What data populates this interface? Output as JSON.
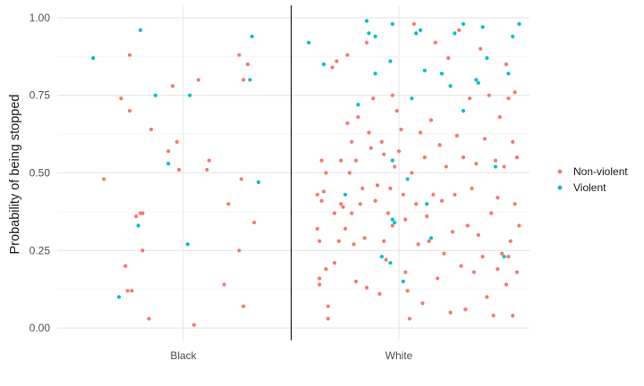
{
  "chart_data": {
    "type": "scatter",
    "title": "",
    "xlabel": "",
    "ylabel": "Probability of being stopped",
    "categories": [
      "Black",
      "White"
    ],
    "ylim": [
      -0.04,
      1.04
    ],
    "yticks": [
      0.0,
      0.25,
      0.5,
      0.75,
      1.0
    ],
    "ytick_labels": [
      "0.00",
      "0.25",
      "0.50",
      "0.75",
      "1.00"
    ],
    "grid": true,
    "divider_between_categories": true,
    "legend_position": "right",
    "series": [
      {
        "name": "Non-violent",
        "color": "#F8766D",
        "points": [
          [
            "Black",
            -0.37,
            0.48
          ],
          [
            "Black",
            -0.29,
            0.74
          ],
          [
            "Black",
            -0.27,
            0.2
          ],
          [
            "Black",
            -0.25,
            0.88
          ],
          [
            "Black",
            -0.25,
            0.7
          ],
          [
            "Black",
            -0.26,
            0.12
          ],
          [
            "Black",
            -0.24,
            0.12
          ],
          [
            "Black",
            -0.22,
            0.36
          ],
          [
            "Black",
            -0.2,
            0.37
          ],
          [
            "Black",
            -0.19,
            0.37
          ],
          [
            "Black",
            -0.19,
            0.25
          ],
          [
            "Black",
            -0.16,
            0.03
          ],
          [
            "Black",
            -0.15,
            0.64
          ],
          [
            "Black",
            -0.07,
            0.57
          ],
          [
            "Black",
            -0.05,
            0.78
          ],
          [
            "Black",
            -0.03,
            0.6
          ],
          [
            "Black",
            -0.02,
            0.51
          ],
          [
            "Black",
            0.05,
            0.01
          ],
          [
            "Black",
            0.07,
            0.8
          ],
          [
            "Black",
            0.11,
            0.51
          ],
          [
            "Black",
            0.12,
            0.54
          ],
          [
            "Black",
            0.19,
            0.14
          ],
          [
            "Black",
            0.21,
            0.4
          ],
          [
            "Black",
            0.26,
            0.88
          ],
          [
            "Black",
            0.26,
            0.25
          ],
          [
            "Black",
            0.27,
            0.48
          ],
          [
            "Black",
            0.28,
            0.07
          ],
          [
            "Black",
            0.28,
            0.8
          ],
          [
            "Black",
            0.3,
            0.85
          ],
          [
            "Black",
            0.33,
            0.34
          ],
          [
            "White",
            -0.38,
            0.43
          ],
          [
            "White",
            -0.38,
            0.32
          ],
          [
            "White",
            -0.37,
            0.28
          ],
          [
            "White",
            -0.37,
            0.16
          ],
          [
            "White",
            -0.37,
            0.14
          ],
          [
            "White",
            -0.36,
            0.41
          ],
          [
            "White",
            -0.36,
            0.54
          ],
          [
            "White",
            -0.35,
            0.44
          ],
          [
            "White",
            -0.34,
            0.5
          ],
          [
            "White",
            -0.34,
            0.19
          ],
          [
            "White",
            -0.33,
            0.07
          ],
          [
            "White",
            -0.33,
            0.03
          ],
          [
            "White",
            -0.31,
            0.84
          ],
          [
            "White",
            -0.3,
            0.37
          ],
          [
            "White",
            -0.3,
            0.21
          ],
          [
            "White",
            -0.29,
            0.86
          ],
          [
            "White",
            -0.28,
            0.28
          ],
          [
            "White",
            -0.27,
            0.54
          ],
          [
            "White",
            -0.27,
            0.4
          ],
          [
            "White",
            -0.26,
            0.39
          ],
          [
            "White",
            -0.25,
            0.32
          ],
          [
            "White",
            -0.24,
            0.88
          ],
          [
            "White",
            -0.24,
            0.66
          ],
          [
            "White",
            -0.23,
            0.5
          ],
          [
            "White",
            -0.22,
            0.6
          ],
          [
            "White",
            -0.22,
            0.37
          ],
          [
            "White",
            -0.21,
            0.27
          ],
          [
            "White",
            -0.2,
            0.15
          ],
          [
            "White",
            -0.2,
            0.54
          ],
          [
            "White",
            -0.19,
            0.68
          ],
          [
            "White",
            -0.18,
            0.4
          ],
          [
            "White",
            -0.17,
            0.45
          ],
          [
            "White",
            -0.16,
            0.29
          ],
          [
            "White",
            -0.15,
            0.92
          ],
          [
            "White",
            -0.15,
            0.13
          ],
          [
            "White",
            -0.14,
            0.63
          ],
          [
            "White",
            -0.13,
            0.58
          ],
          [
            "White",
            -0.12,
            0.74
          ],
          [
            "White",
            -0.11,
            0.41
          ],
          [
            "White",
            -0.1,
            0.46
          ],
          [
            "White",
            -0.09,
            0.11
          ],
          [
            "White",
            -0.08,
            0.6
          ],
          [
            "White",
            -0.07,
            0.28
          ],
          [
            "White",
            -0.07,
            0.56
          ],
          [
            "White",
            -0.06,
            0.22
          ],
          [
            "White",
            -0.05,
            0.37
          ],
          [
            "White",
            -0.04,
            0.45
          ],
          [
            "White",
            -0.03,
            0.75
          ],
          [
            "White",
            -0.03,
            0.33
          ],
          [
            "White",
            -0.02,
            0.52
          ],
          [
            "White",
            -0.01,
            0.7
          ],
          [
            "White",
            0.0,
            0.57
          ],
          [
            "White",
            0.01,
            0.64
          ],
          [
            "White",
            0.02,
            0.43
          ],
          [
            "White",
            0.03,
            0.35
          ],
          [
            "White",
            0.03,
            0.18
          ],
          [
            "White",
            0.04,
            0.12
          ],
          [
            "White",
            0.05,
            0.03
          ],
          [
            "White",
            0.06,
            0.5
          ],
          [
            "White",
            0.07,
            0.98
          ],
          [
            "White",
            0.08,
            0.4
          ],
          [
            "White",
            0.09,
            0.27
          ],
          [
            "White",
            0.1,
            0.63
          ],
          [
            "White",
            0.11,
            0.08
          ],
          [
            "White",
            0.12,
            0.55
          ],
          [
            "White",
            0.13,
            0.36
          ],
          [
            "White",
            0.14,
            0.28
          ],
          [
            "White",
            0.15,
            0.67
          ],
          [
            "White",
            0.16,
            0.43
          ],
          [
            "White",
            0.17,
            0.92
          ],
          [
            "White",
            0.18,
            0.16
          ],
          [
            "White",
            0.19,
            0.59
          ],
          [
            "White",
            0.2,
            0.41
          ],
          [
            "White",
            0.21,
            0.24
          ],
          [
            "White",
            0.22,
            0.52
          ],
          [
            "White",
            0.23,
            0.87
          ],
          [
            "White",
            0.24,
            0.05
          ],
          [
            "White",
            0.25,
            0.31
          ],
          [
            "White",
            0.26,
            0.43
          ],
          [
            "White",
            0.27,
            0.62
          ],
          [
            "White",
            0.28,
            0.96
          ],
          [
            "White",
            0.29,
            0.2
          ],
          [
            "White",
            0.3,
            0.55
          ],
          [
            "White",
            0.31,
            0.06
          ],
          [
            "White",
            0.32,
            0.33
          ],
          [
            "White",
            0.33,
            0.74
          ],
          [
            "White",
            0.34,
            0.45
          ],
          [
            "White",
            0.35,
            0.18
          ],
          [
            "White",
            0.36,
            0.53
          ],
          [
            "White",
            0.37,
            0.3
          ],
          [
            "White",
            0.38,
            0.9
          ],
          [
            "White",
            0.39,
            0.23
          ],
          [
            "White",
            0.4,
            0.61
          ],
          [
            "White",
            0.41,
            0.1
          ],
          [
            "White",
            0.42,
            0.75
          ],
          [
            "White",
            0.43,
            0.37
          ],
          [
            "White",
            0.44,
            0.04
          ],
          [
            "White",
            0.45,
            0.54
          ],
          [
            "White",
            0.46,
            0.19
          ],
          [
            "White",
            0.46,
            0.42
          ],
          [
            "White",
            0.47,
            0.68
          ],
          [
            "White",
            0.48,
            0.24
          ],
          [
            "White",
            0.49,
            0.52
          ],
          [
            "White",
            0.5,
            0.85
          ],
          [
            "White",
            0.5,
            0.14
          ],
          [
            "White",
            0.51,
            0.74
          ],
          [
            "White",
            0.51,
            0.23
          ],
          [
            "White",
            0.52,
            0.28
          ],
          [
            "White",
            0.53,
            0.6
          ],
          [
            "White",
            0.53,
            0.04
          ],
          [
            "White",
            0.54,
            0.4
          ],
          [
            "White",
            0.54,
            0.76
          ],
          [
            "White",
            0.55,
            0.18
          ],
          [
            "White",
            0.55,
            0.55
          ],
          [
            "White",
            0.56,
            0.33
          ]
        ]
      },
      {
        "name": "Violent",
        "color": "#00BFC4",
        "points": [
          [
            "Black",
            -0.42,
            0.87
          ],
          [
            "Black",
            -0.3,
            0.1
          ],
          [
            "Black",
            -0.21,
            0.33
          ],
          [
            "Black",
            -0.2,
            0.96
          ],
          [
            "Black",
            -0.13,
            0.75
          ],
          [
            "Black",
            -0.07,
            0.53
          ],
          [
            "Black",
            0.02,
            0.27
          ],
          [
            "Black",
            0.03,
            0.75
          ],
          [
            "Black",
            0.31,
            0.8
          ],
          [
            "Black",
            0.32,
            0.94
          ],
          [
            "Black",
            0.35,
            0.47
          ],
          [
            "White",
            -0.42,
            0.92
          ],
          [
            "White",
            -0.35,
            0.85
          ],
          [
            "White",
            -0.25,
            0.43
          ],
          [
            "White",
            -0.19,
            0.72
          ],
          [
            "White",
            -0.15,
            0.99
          ],
          [
            "White",
            -0.14,
            0.95
          ],
          [
            "White",
            -0.11,
            0.94
          ],
          [
            "White",
            -0.11,
            0.82
          ],
          [
            "White",
            -0.08,
            0.23
          ],
          [
            "White",
            -0.04,
            0.21
          ],
          [
            "White",
            -0.04,
            0.86
          ],
          [
            "White",
            -0.03,
            0.98
          ],
          [
            "White",
            -0.03,
            0.54
          ],
          [
            "White",
            -0.03,
            0.35
          ],
          [
            "White",
            -0.02,
            0.34
          ],
          [
            "White",
            0.02,
            0.15
          ],
          [
            "White",
            0.04,
            0.48
          ],
          [
            "White",
            0.06,
            0.74
          ],
          [
            "White",
            0.08,
            0.95
          ],
          [
            "White",
            0.1,
            0.96
          ],
          [
            "White",
            0.12,
            0.83
          ],
          [
            "White",
            0.13,
            0.4
          ],
          [
            "White",
            0.15,
            0.29
          ],
          [
            "White",
            0.2,
            0.82
          ],
          [
            "White",
            0.24,
            0.78
          ],
          [
            "White",
            0.26,
            0.95
          ],
          [
            "White",
            0.3,
            0.98
          ],
          [
            "White",
            0.3,
            0.7
          ],
          [
            "White",
            0.36,
            0.8
          ],
          [
            "White",
            0.37,
            0.79
          ],
          [
            "White",
            0.39,
            0.97
          ],
          [
            "White",
            0.41,
            0.87
          ],
          [
            "White",
            0.45,
            0.52
          ],
          [
            "White",
            0.49,
            0.23
          ],
          [
            "White",
            0.51,
            0.82
          ],
          [
            "White",
            0.53,
            0.94
          ],
          [
            "White",
            0.56,
            0.98
          ]
        ]
      }
    ]
  }
}
